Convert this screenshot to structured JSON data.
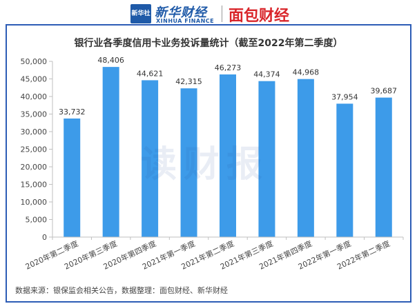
{
  "header": {
    "logo_box": "新华社",
    "logo_xinhua": "新华财经",
    "logo_xinhua_en": "XINHUA FINANCE",
    "logo_mianbao": "面包财经"
  },
  "watermark": "读财报",
  "source": "数据来源：银保监会相关公告，数据整理：面包财经、新华财经",
  "colors": {
    "frame": "#2b5bb5",
    "bar": "#3d9be9",
    "axis": "#bfbfbf",
    "text": "#333333"
  },
  "chart_data": {
    "type": "bar",
    "title": "银行业各季度信用卡业务投诉量统计（截至2022年第二季度）",
    "categories": [
      "2020年第二季度",
      "2020年第三季度",
      "2020年第四季度",
      "2021年第一季度",
      "2021年第二季度",
      "2021年第三季度",
      "2021年第四季度",
      "2022年第一季度",
      "2022年第二季度"
    ],
    "values": [
      33732,
      48406,
      44621,
      42315,
      46273,
      44374,
      44968,
      37954,
      39687
    ],
    "data_labels": [
      "33,732",
      "48,406",
      "44,621",
      "42,315",
      "46,273",
      "44,374",
      "44,968",
      "37,954",
      "39,687"
    ],
    "y_ticks": [
      "0",
      "5,000",
      "10,000",
      "15,000",
      "20,000",
      "25,000",
      "30,000",
      "35,000",
      "40,000",
      "45,000",
      "50,000"
    ],
    "ylim": [
      0,
      50000
    ],
    "grid": false,
    "legend": "none"
  }
}
